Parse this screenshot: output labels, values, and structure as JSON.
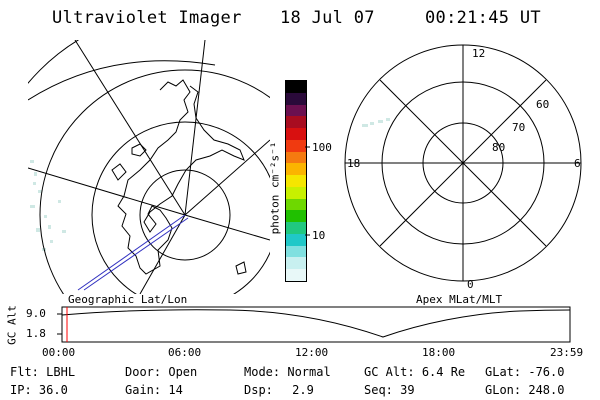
{
  "header": {
    "title": "Ultraviolet Imager",
    "date": "18 Jul 07",
    "time": "00:21:45 UT"
  },
  "colorbar": {
    "unit_label": "photon cm⁻²s⁻¹",
    "ticks": [
      "100",
      "10"
    ],
    "colors": [
      "#000000",
      "#2a0a3a",
      "#6b1050",
      "#a80c20",
      "#d81010",
      "#f03a10",
      "#f57a10",
      "#fbb400",
      "#f5e600",
      "#c8f000",
      "#6ed800",
      "#20c000",
      "#20c880",
      "#20c8c8",
      "#80e0e0",
      "#c8f0f0",
      "#e8f8f8"
    ]
  },
  "left_map": {
    "caption": "Geographic Lat/Lon"
  },
  "right_map": {
    "caption": "Apex MLat/MLT",
    "mlt_labels": [
      "12",
      "18",
      "6",
      "0"
    ],
    "mlat_labels": [
      "60",
      "70",
      "80"
    ]
  },
  "altitude_plot": {
    "ylabel": "GC Alt",
    "yticks": [
      "9.0",
      "1.8"
    ],
    "xticks": [
      "00:00",
      "06:00",
      "12:00",
      "18:00",
      "23:59"
    ],
    "marker_color": "#ff0000"
  },
  "status": {
    "flt_label": "Flt:",
    "flt_value": "LBHL",
    "door_label": "Door:",
    "door_value": "Open",
    "mode_label": "Mode:",
    "mode_value": "Normal",
    "gcalt_label": "GC Alt:",
    "gcalt_value": "6.4 Re",
    "glat_label": "GLat:",
    "glat_value": "-76.0",
    "ip_label": "IP:",
    "ip_value": "36.0",
    "gain_label": "Gain:",
    "gain_value": "14",
    "dsp_label": "Dsp:",
    "dsp_value": "2.9",
    "seq_label": "Seq:",
    "seq_value": "39",
    "glon_label": "GLon:",
    "glon_value": "248.0"
  }
}
